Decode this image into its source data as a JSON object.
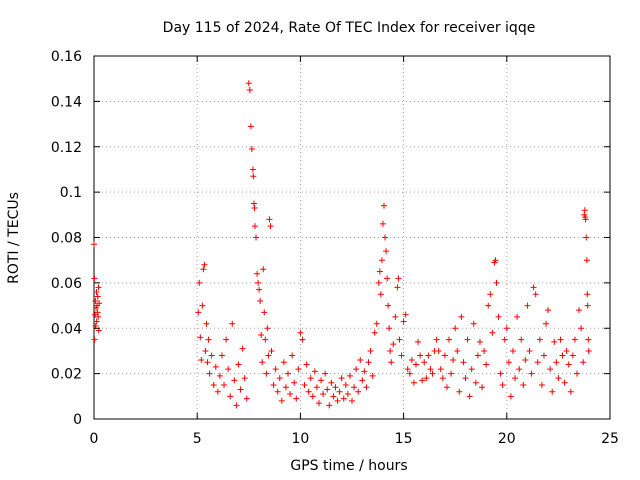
{
  "chart_data": {
    "type": "scatter",
    "title": "Day 115 of 2024, Rate Of TEC Index for receiver iqqe",
    "xlabel": "GPS time / hours",
    "ylabel": "ROTI / TECUs",
    "xlim": [
      0,
      25
    ],
    "ylim": [
      0,
      0.16
    ],
    "xticks": [
      0,
      5,
      10,
      15,
      20,
      25
    ],
    "xtick_labels": [
      "0",
      "5",
      "10",
      "15",
      "20",
      "25"
    ],
    "yticks": [
      0,
      0.02,
      0.04,
      0.06,
      0.08,
      0.1,
      0.12,
      0.14,
      0.16
    ],
    "ytick_labels": [
      "0",
      "0.02",
      "0.04",
      "0.06",
      "0.08",
      "0.1",
      "0.12",
      "0.14",
      "0.16"
    ],
    "grid": true,
    "marker": "plus",
    "color": "#ff0000",
    "series": [
      {
        "name": "ROTI",
        "points": [
          [
            0.0,
            0.077
          ],
          [
            0.02,
            0.062
          ],
          [
            0.03,
            0.035
          ],
          [
            0.05,
            0.046
          ],
          [
            0.07,
            0.052
          ],
          [
            0.08,
            0.041
          ],
          [
            0.1,
            0.049
          ],
          [
            0.12,
            0.056
          ],
          [
            0.13,
            0.043
          ],
          [
            0.15,
            0.05
          ],
          [
            0.17,
            0.047
          ],
          [
            0.18,
            0.054
          ],
          [
            0.2,
            0.045
          ],
          [
            0.22,
            0.058
          ],
          [
            0.23,
            0.039
          ],
          [
            0.25,
            0.051
          ],
          [
            5.05,
            0.047
          ],
          [
            5.1,
            0.06
          ],
          [
            5.15,
            0.036
          ],
          [
            5.2,
            0.026
          ],
          [
            5.25,
            0.05
          ],
          [
            5.3,
            0.066
          ],
          [
            5.35,
            0.068
          ],
          [
            5.4,
            0.03
          ],
          [
            5.45,
            0.042
          ],
          [
            5.5,
            0.025
          ],
          [
            5.55,
            0.035
          ],
          [
            5.6,
            0.02
          ],
          [
            5.7,
            0.028
          ],
          [
            5.8,
            0.015
          ],
          [
            5.9,
            0.023
          ],
          [
            6.0,
            0.012
          ],
          [
            6.1,
            0.019
          ],
          [
            6.2,
            0.028
          ],
          [
            6.3,
            0.015
          ],
          [
            6.4,
            0.035
          ],
          [
            6.5,
            0.022
          ],
          [
            6.6,
            0.01
          ],
          [
            6.7,
            0.042
          ],
          [
            6.8,
            0.017
          ],
          [
            6.9,
            0.006
          ],
          [
            7.0,
            0.024
          ],
          [
            7.1,
            0.013
          ],
          [
            7.2,
            0.031
          ],
          [
            7.3,
            0.018
          ],
          [
            7.4,
            0.009
          ],
          [
            7.5,
            0.148
          ],
          [
            7.55,
            0.145
          ],
          [
            7.6,
            0.129
          ],
          [
            7.65,
            0.119
          ],
          [
            7.7,
            0.11
          ],
          [
            7.72,
            0.107
          ],
          [
            7.75,
            0.095
          ],
          [
            7.78,
            0.093
          ],
          [
            7.8,
            0.085
          ],
          [
            7.85,
            0.08
          ],
          [
            7.9,
            0.064
          ],
          [
            7.95,
            0.06
          ],
          [
            8.0,
            0.057
          ],
          [
            8.05,
            0.052
          ],
          [
            8.1,
            0.037
          ],
          [
            8.15,
            0.025
          ],
          [
            8.2,
            0.066
          ],
          [
            8.25,
            0.047
          ],
          [
            8.3,
            0.035
          ],
          [
            8.35,
            0.02
          ],
          [
            8.4,
            0.04
          ],
          [
            8.45,
            0.028
          ],
          [
            8.5,
            0.088
          ],
          [
            8.55,
            0.085
          ],
          [
            8.6,
            0.03
          ],
          [
            8.7,
            0.015
          ],
          [
            8.8,
            0.022
          ],
          [
            8.9,
            0.012
          ],
          [
            9.0,
            0.018
          ],
          [
            9.1,
            0.008
          ],
          [
            9.2,
            0.025
          ],
          [
            9.3,
            0.014
          ],
          [
            9.4,
            0.02
          ],
          [
            9.5,
            0.011
          ],
          [
            9.6,
            0.028
          ],
          [
            9.7,
            0.016
          ],
          [
            9.8,
            0.009
          ],
          [
            9.9,
            0.022
          ],
          [
            10.0,
            0.038
          ],
          [
            10.1,
            0.035
          ],
          [
            10.2,
            0.015
          ],
          [
            10.3,
            0.024
          ],
          [
            10.4,
            0.012
          ],
          [
            10.5,
            0.018
          ],
          [
            10.6,
            0.01
          ],
          [
            10.7,
            0.021
          ],
          [
            10.8,
            0.014
          ],
          [
            10.9,
            0.007
          ],
          [
            11.0,
            0.017
          ],
          [
            11.1,
            0.011
          ],
          [
            11.2,
            0.02
          ],
          [
            11.3,
            0.013
          ],
          [
            11.4,
            0.006
          ],
          [
            11.5,
            0.016
          ],
          [
            11.6,
            0.01
          ],
          [
            11.7,
            0.014
          ],
          [
            11.8,
            0.008
          ],
          [
            11.9,
            0.012
          ],
          [
            12.0,
            0.018
          ],
          [
            12.1,
            0.009
          ],
          [
            12.2,
            0.015
          ],
          [
            12.3,
            0.011
          ],
          [
            12.4,
            0.019
          ],
          [
            12.5,
            0.008
          ],
          [
            12.6,
            0.014
          ],
          [
            12.7,
            0.022
          ],
          [
            12.8,
            0.012
          ],
          [
            12.9,
            0.026
          ],
          [
            13.0,
            0.017
          ],
          [
            13.1,
            0.021
          ],
          [
            13.2,
            0.014
          ],
          [
            13.3,
            0.025
          ],
          [
            13.4,
            0.03
          ],
          [
            13.5,
            0.019
          ],
          [
            13.6,
            0.038
          ],
          [
            13.7,
            0.042
          ],
          [
            13.8,
            0.06
          ],
          [
            13.85,
            0.065
          ],
          [
            13.9,
            0.055
          ],
          [
            13.95,
            0.07
          ],
          [
            14.0,
            0.086
          ],
          [
            14.05,
            0.094
          ],
          [
            14.1,
            0.08
          ],
          [
            14.15,
            0.074
          ],
          [
            14.2,
            0.062
          ],
          [
            14.25,
            0.05
          ],
          [
            14.3,
            0.04
          ],
          [
            14.35,
            0.03
          ],
          [
            14.4,
            0.025
          ],
          [
            14.5,
            0.033
          ],
          [
            14.6,
            0.045
          ],
          [
            14.7,
            0.058
          ],
          [
            14.75,
            0.062
          ],
          [
            14.8,
            0.035
          ],
          [
            14.9,
            0.028
          ],
          [
            15.0,
            0.043
          ],
          [
            15.1,
            0.046
          ],
          [
            15.2,
            0.022
          ],
          [
            15.3,
            0.02
          ],
          [
            15.4,
            0.026
          ],
          [
            15.5,
            0.016
          ],
          [
            15.6,
            0.024
          ],
          [
            15.7,
            0.034
          ],
          [
            15.8,
            0.028
          ],
          [
            15.9,
            0.017
          ],
          [
            16.0,
            0.025
          ],
          [
            16.1,
            0.018
          ],
          [
            16.2,
            0.028
          ],
          [
            16.3,
            0.022
          ],
          [
            16.4,
            0.02
          ],
          [
            16.5,
            0.03
          ],
          [
            16.6,
            0.035
          ],
          [
            16.7,
            0.03
          ],
          [
            16.8,
            0.022
          ],
          [
            16.9,
            0.018
          ],
          [
            17.0,
            0.028
          ],
          [
            17.1,
            0.014
          ],
          [
            17.2,
            0.035
          ],
          [
            17.3,
            0.02
          ],
          [
            17.4,
            0.026
          ],
          [
            17.5,
            0.04
          ],
          [
            17.6,
            0.03
          ],
          [
            17.7,
            0.012
          ],
          [
            17.8,
            0.045
          ],
          [
            17.9,
            0.025
          ],
          [
            18.0,
            0.018
          ],
          [
            18.1,
            0.035
          ],
          [
            18.2,
            0.01
          ],
          [
            18.3,
            0.022
          ],
          [
            18.4,
            0.042
          ],
          [
            18.5,
            0.016
          ],
          [
            18.6,
            0.028
          ],
          [
            18.7,
            0.034
          ],
          [
            18.8,
            0.014
          ],
          [
            18.9,
            0.03
          ],
          [
            19.0,
            0.024
          ],
          [
            19.1,
            0.05
          ],
          [
            19.2,
            0.055
          ],
          [
            19.3,
            0.038
          ],
          [
            19.4,
            0.069
          ],
          [
            19.45,
            0.07
          ],
          [
            19.5,
            0.06
          ],
          [
            19.6,
            0.045
          ],
          [
            19.7,
            0.02
          ],
          [
            19.8,
            0.015
          ],
          [
            19.9,
            0.035
          ],
          [
            20.0,
            0.04
          ],
          [
            20.1,
            0.025
          ],
          [
            20.2,
            0.01
          ],
          [
            20.3,
            0.03
          ],
          [
            20.4,
            0.018
          ],
          [
            20.5,
            0.045
          ],
          [
            20.6,
            0.022
          ],
          [
            20.7,
            0.035
          ],
          [
            20.8,
            0.015
          ],
          [
            20.9,
            0.026
          ],
          [
            21.0,
            0.05
          ],
          [
            21.1,
            0.03
          ],
          [
            21.2,
            0.02
          ],
          [
            21.3,
            0.058
          ],
          [
            21.4,
            0.055
          ],
          [
            21.5,
            0.025
          ],
          [
            21.6,
            0.035
          ],
          [
            21.7,
            0.015
          ],
          [
            21.8,
            0.028
          ],
          [
            21.9,
            0.042
          ],
          [
            22.0,
            0.048
          ],
          [
            22.1,
            0.022
          ],
          [
            22.2,
            0.012
          ],
          [
            22.3,
            0.034
          ],
          [
            22.4,
            0.025
          ],
          [
            22.5,
            0.018
          ],
          [
            22.6,
            0.035
          ],
          [
            22.7,
            0.028
          ],
          [
            22.8,
            0.016
          ],
          [
            22.9,
            0.03
          ],
          [
            23.0,
            0.024
          ],
          [
            23.1,
            0.012
          ],
          [
            23.2,
            0.028
          ],
          [
            23.3,
            0.035
          ],
          [
            23.4,
            0.02
          ],
          [
            23.5,
            0.048
          ],
          [
            23.6,
            0.04
          ],
          [
            23.7,
            0.025
          ],
          [
            23.75,
            0.09
          ],
          [
            23.78,
            0.092
          ],
          [
            23.8,
            0.089
          ],
          [
            23.82,
            0.088
          ],
          [
            23.85,
            0.08
          ],
          [
            23.88,
            0.07
          ],
          [
            23.9,
            0.055
          ],
          [
            23.92,
            0.05
          ],
          [
            23.95,
            0.035
          ],
          [
            23.97,
            0.03
          ]
        ]
      }
    ]
  }
}
